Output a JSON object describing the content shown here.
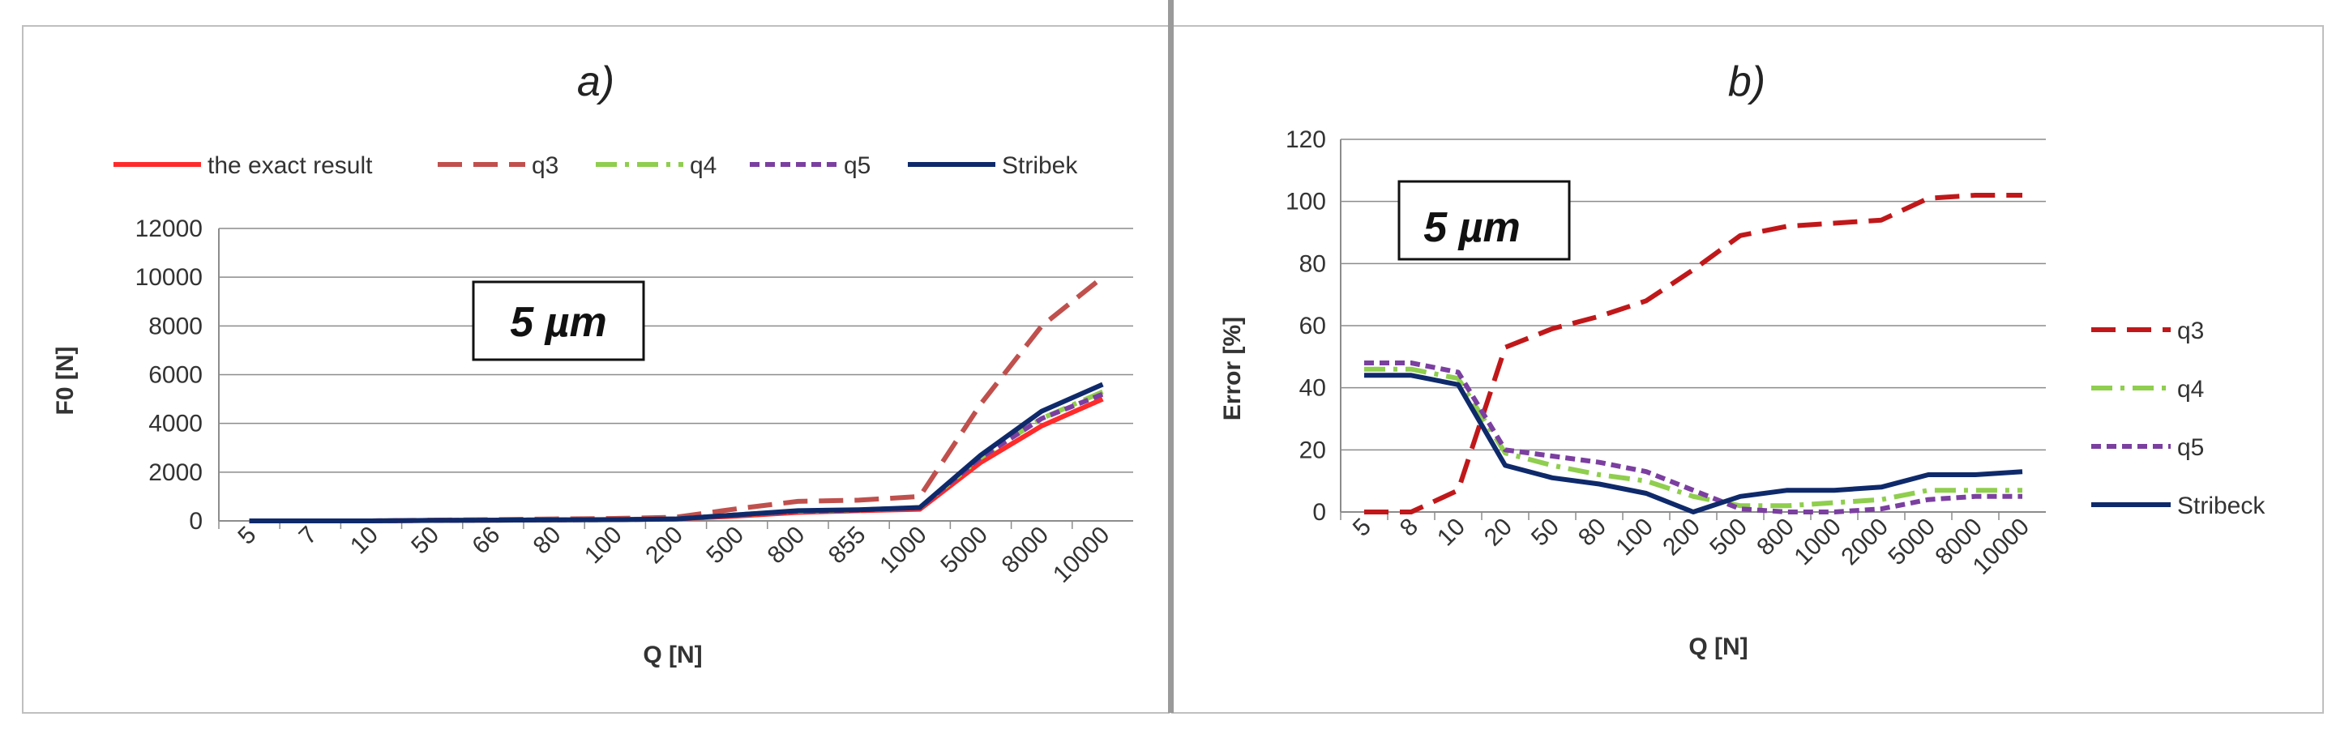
{
  "chart_data": [
    {
      "type": "line",
      "title": "a)",
      "xlabel": "Q [N]",
      "ylabel": "F0 [N]",
      "ylim": [
        0,
        12000
      ],
      "yticks": [
        0,
        2000,
        4000,
        6000,
        8000,
        10000,
        12000
      ],
      "categories": [
        "5",
        "7",
        "10",
        "50",
        "66",
        "80",
        "100",
        "200",
        "500",
        "800",
        "855",
        "1000",
        "5000",
        "8000",
        "10000"
      ],
      "annotation": "5 µm",
      "legend_position": "top",
      "grid": true,
      "series": [
        {
          "name": "the exact result",
          "color": "#ff2b2b",
          "dash": "solid",
          "values": [
            0,
            0,
            0,
            20,
            30,
            40,
            60,
            80,
            200,
            350,
            420,
            480,
            2400,
            3900,
            5000
          ]
        },
        {
          "name": "q3",
          "color": "#c0504d",
          "dash": "long-dash",
          "values": [
            0,
            0,
            0,
            30,
            50,
            80,
            100,
            150,
            500,
            800,
            850,
            1000,
            4800,
            8000,
            10000
          ]
        },
        {
          "name": "q4",
          "color": "#8fce4e",
          "dash": "dash-dot",
          "values": [
            0,
            0,
            0,
            20,
            30,
            40,
            50,
            80,
            250,
            400,
            450,
            550,
            2600,
            4200,
            5300
          ]
        },
        {
          "name": "q5",
          "color": "#7b3fa0",
          "dash": "short-dash",
          "values": [
            0,
            0,
            0,
            20,
            30,
            40,
            50,
            80,
            250,
            400,
            450,
            540,
            2600,
            4200,
            5200
          ]
        },
        {
          "name": "Stribek",
          "color": "#0f2a6b",
          "dash": "solid",
          "values": [
            0,
            0,
            0,
            20,
            30,
            40,
            50,
            80,
            250,
            420,
            460,
            550,
            2700,
            4500,
            5600
          ]
        }
      ]
    },
    {
      "type": "line",
      "title": "b)",
      "xlabel": "Q [N]",
      "ylabel": "Error [%]",
      "ylim": [
        0,
        120
      ],
      "yticks": [
        0,
        20,
        40,
        60,
        80,
        100,
        120
      ],
      "categories": [
        "5",
        "8",
        "10",
        "20",
        "50",
        "80",
        "100",
        "200",
        "500",
        "800",
        "1000",
        "2000",
        "5000",
        "8000",
        "10000"
      ],
      "annotation": "5 µm",
      "legend_position": "right",
      "grid": true,
      "series": [
        {
          "name": "q3",
          "color": "#c0181a",
          "dash": "long-dash",
          "values": [
            0,
            0,
            7,
            53,
            59,
            63,
            68,
            78,
            89,
            92,
            93,
            94,
            101,
            102,
            102
          ]
        },
        {
          "name": "q4",
          "color": "#8fce4e",
          "dash": "dash-dot",
          "values": [
            46,
            46,
            43,
            19,
            15,
            12,
            10,
            5,
            2,
            2,
            3,
            4,
            7,
            7,
            7
          ]
        },
        {
          "name": "q5",
          "color": "#7b3fa0",
          "dash": "short-dash",
          "values": [
            48,
            48,
            45,
            20,
            18,
            16,
            13,
            7,
            1,
            0,
            0,
            1,
            4,
            5,
            5
          ]
        },
        {
          "name": "Stribeck",
          "color": "#0f2a6b",
          "dash": "solid",
          "values": [
            44,
            44,
            41,
            15,
            11,
            9,
            6,
            0,
            5,
            7,
            7,
            8,
            12,
            12,
            13
          ]
        }
      ]
    }
  ]
}
